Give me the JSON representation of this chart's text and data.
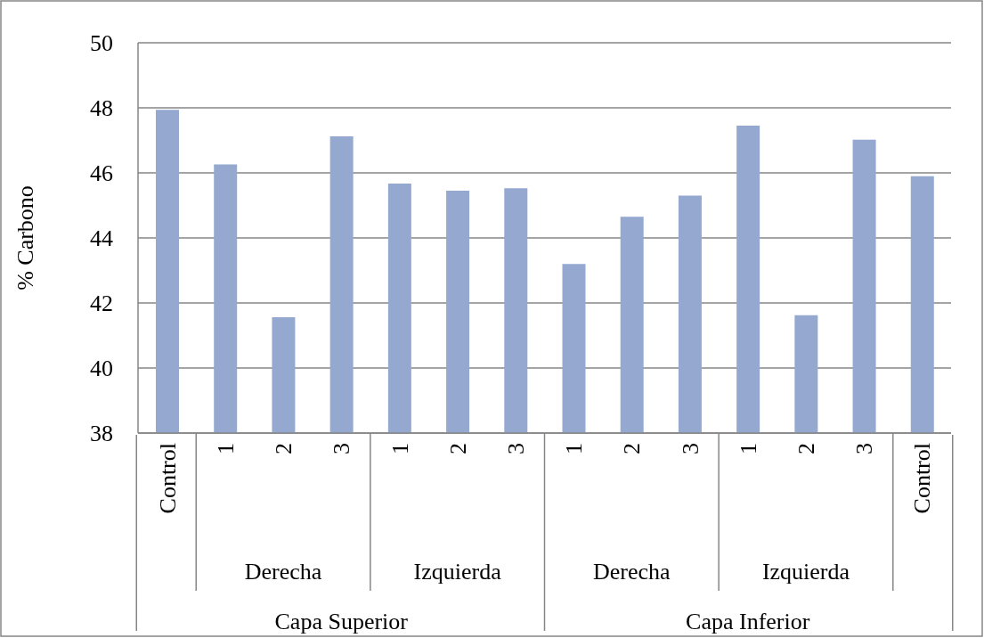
{
  "chart_data": {
    "type": "bar",
    "ylabel": "% Carbono",
    "categories": [
      "Control",
      "1",
      "2",
      "3",
      "1",
      "2",
      "3",
      "1",
      "2",
      "3",
      "1",
      "2",
      "3",
      "Control"
    ],
    "values": [
      47.94,
      46.26,
      41.56,
      47.12,
      45.67,
      45.45,
      45.53,
      43.2,
      44.65,
      45.3,
      47.45,
      41.62,
      47.02,
      45.9
    ],
    "color": "#95a9d0",
    "ylim": [
      38,
      50
    ],
    "yticks": [
      38,
      40,
      42,
      44,
      46,
      48,
      50
    ],
    "grid": "y",
    "annotations": [
      "Derecha",
      "Izquierda",
      "Derecha",
      "Izquierda",
      "Capa Superior",
      "Capa Inferior"
    ]
  }
}
